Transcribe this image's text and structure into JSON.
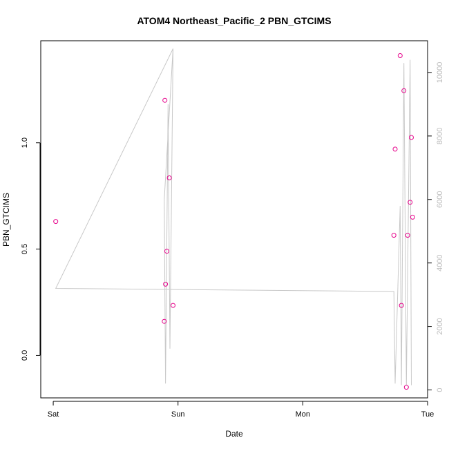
{
  "chart_data": {
    "type": "scatter",
    "title": "ATOM4 Northeast_Pacific_2 PBN_GTCIMS",
    "xlabel": "Date",
    "ylabel": "PBN_GTCIMS",
    "x_axis": {
      "type": "time",
      "ticks": [
        {
          "value": 0,
          "label": "Sat"
        },
        {
          "value": 1,
          "label": "Sun"
        },
        {
          "value": 2,
          "label": "Mon"
        },
        {
          "value": 3,
          "label": "Tue"
        }
      ],
      "xlim": [
        -0.1,
        3.0
      ]
    },
    "y_axis_left": {
      "ylim": [
        -0.2,
        1.48
      ],
      "ticks": [
        {
          "value": 0.0,
          "label": "0.0"
        },
        {
          "value": 0.5,
          "label": "0.5"
        },
        {
          "value": 1.0,
          "label": "1.0"
        }
      ]
    },
    "y_axis_right": {
      "ylim": [
        -250,
        11000
      ],
      "ticks": [
        {
          "value": 0,
          "label": "0"
        },
        {
          "value": 2000,
          "label": "2000"
        },
        {
          "value": 4000,
          "label": "4000"
        },
        {
          "value": 6000,
          "label": "6000"
        },
        {
          "value": 8000,
          "label": "8000"
        },
        {
          "value": 10000,
          "label": "10000"
        }
      ],
      "color": "#bdbdbd"
    },
    "series": [
      {
        "kind": "points",
        "axis": "left",
        "color": "#e6008a",
        "points": [
          [
            0.02,
            0.63
          ],
          [
            0.89,
            0.16
          ],
          [
            0.895,
            1.2
          ],
          [
            0.9,
            0.335
          ],
          [
            0.91,
            0.49
          ],
          [
            0.93,
            0.835
          ],
          [
            0.96,
            0.235
          ],
          [
            2.73,
            0.565
          ],
          [
            2.74,
            0.97
          ],
          [
            2.78,
            1.41
          ],
          [
            2.79,
            0.235
          ],
          [
            2.81,
            1.245
          ],
          [
            2.83,
            -0.15
          ],
          [
            2.84,
            0.565
          ],
          [
            2.86,
            0.72
          ],
          [
            2.87,
            1.025
          ],
          [
            2.88,
            0.65
          ]
        ]
      },
      {
        "kind": "line",
        "axis": "right",
        "color": "#c8c8c8",
        "points": [
          [
            0.02,
            3200
          ],
          [
            0.96,
            10750
          ],
          [
            0.96,
            10750
          ],
          [
            0.89,
            6000
          ],
          [
            0.9,
            200
          ],
          [
            0.92,
            9000
          ],
          [
            0.935,
            1300
          ],
          [
            0.96,
            10750
          ],
          [
            0.02,
            3200
          ],
          [
            2.73,
            3100
          ],
          [
            2.74,
            200
          ],
          [
            2.78,
            5800
          ],
          [
            2.79,
            150
          ],
          [
            2.81,
            10300
          ],
          [
            2.83,
            150
          ],
          [
            2.86,
            10400
          ],
          [
            2.87,
            150
          ]
        ]
      }
    ],
    "grid": false,
    "legend": "none"
  }
}
